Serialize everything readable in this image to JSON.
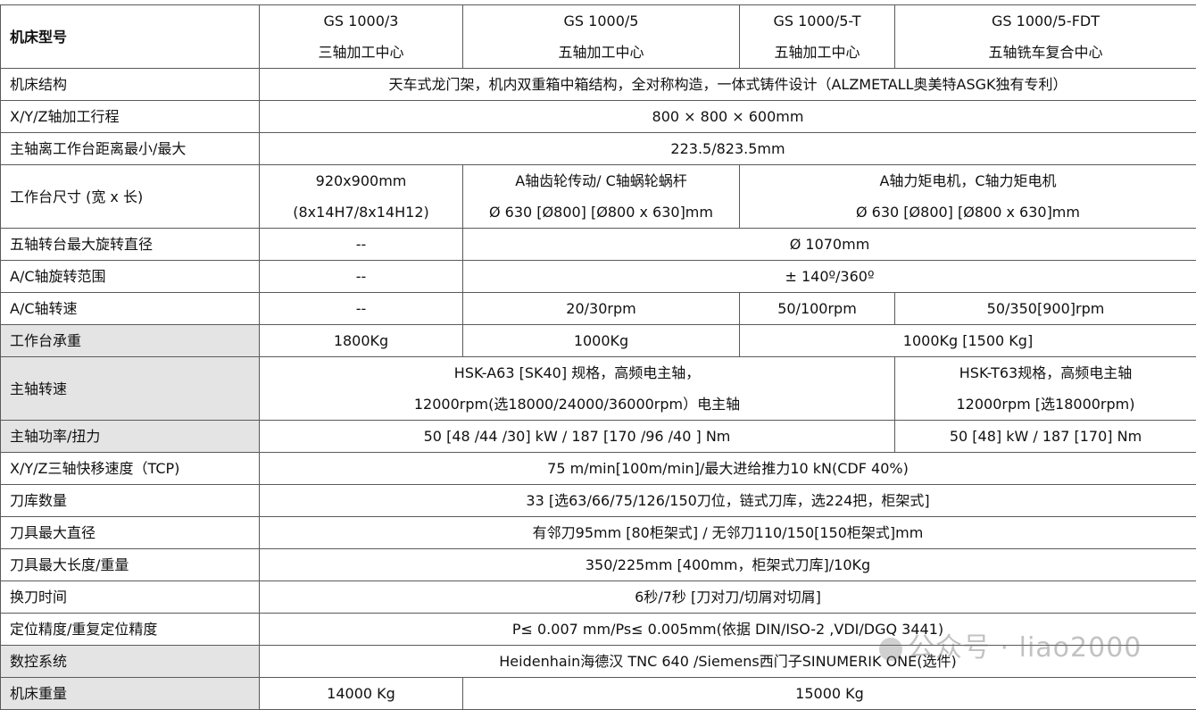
{
  "header": {
    "label": "机床型号",
    "models": [
      "GS 1000/3\n三轴加工中心",
      "GS 1000/5\n五轴加工中心",
      "GS 1000/5-T\n五轴加工中心",
      "GS 1000/5-FDT\n五轴铣车复合中心"
    ]
  },
  "rows": [
    {
      "label": "机床结构",
      "cells": [
        {
          "text": "天车式龙门架，机内双重箱中箱结构，全对称构造，一体式铸件设计（ALZMETALL奥美特ASGK独有专利）",
          "span": 4
        }
      ]
    },
    {
      "label": "X/Y/Z轴加工行程",
      "cells": [
        {
          "text": "800 × 800 × 600mm",
          "span": 4
        }
      ]
    },
    {
      "label": "主轴离工作台距离最小/最大",
      "cells": [
        {
          "text": "223.5/823.5mm",
          "span": 4
        }
      ]
    },
    {
      "label": "工作台尺寸 (宽 x 长)",
      "cells": [
        {
          "text": "920x900mm\n(8x14H7/8x14H12)",
          "span": 1
        },
        {
          "text": "A轴齿轮传动/ C轴蜗轮蜗杆\nØ 630  [Ø800]  [Ø800 x 630]mm",
          "span": 1
        },
        {
          "text": "A轴力矩电机，C轴力矩电机\nØ 630  [Ø800]  [Ø800 x 630]mm",
          "span": 2
        }
      ]
    },
    {
      "label": "五轴转台最大旋转直径",
      "cells": [
        {
          "text": "--",
          "span": 1
        },
        {
          "text": "Ø 1070mm",
          "span": 3
        }
      ]
    },
    {
      "label": "A/C轴旋转范围",
      "cells": [
        {
          "text": "--",
          "span": 1
        },
        {
          "text": "± 140º/360º",
          "span": 3
        }
      ]
    },
    {
      "label": "A/C轴转速",
      "cells": [
        {
          "text": "--",
          "span": 1
        },
        {
          "text": "20/30rpm",
          "span": 1
        },
        {
          "text": "50/100rpm",
          "span": 1
        },
        {
          "text": "50/350[900]rpm",
          "span": 1
        }
      ]
    },
    {
      "label": "工作台承重",
      "gray": true,
      "cells": [
        {
          "text": "1800Kg",
          "span": 1
        },
        {
          "text": "1000Kg",
          "span": 1
        },
        {
          "text": "1000Kg [1500 Kg]",
          "span": 2
        }
      ]
    },
    {
      "label": "主轴转速",
      "gray": true,
      "cells": [
        {
          "text": "HSK-A63 [SK40] 规格，高频电主轴，\n12000rpm(选18000/24000/36000rpm）电主轴",
          "span": 3
        },
        {
          "text": "HSK-T63规格，高频电主轴\n12000rpm  [选18000rpm)",
          "span": 1
        }
      ]
    },
    {
      "label": "主轴功率/扭力",
      "gray": true,
      "cells": [
        {
          "text": "50  [48 /44 /30] kW / 187 [170 /96 /40 ] Nm",
          "span": 3
        },
        {
          "text": "50 [48] kW / 187  [170] Nm",
          "span": 1
        }
      ]
    },
    {
      "label": "X/Y/Z三轴快移速度（TCP)",
      "cells": [
        {
          "text": "75  m/min[100m/min]/最大进给推力10  kN(CDF 40%)",
          "span": 4
        }
      ]
    },
    {
      "label": "刀库数量",
      "cells": [
        {
          "text": "33  [选63/66/75/126/150刀位，链式刀库，选224把，柜架式]",
          "span": 4
        }
      ]
    },
    {
      "label": "刀具最大直径",
      "cells": [
        {
          "text": "有邻刀95mm [80柜架式] / 无邻刀110/150[150柜架式]mm",
          "span": 4
        }
      ]
    },
    {
      "label": "刀具最大长度/重量",
      "cells": [
        {
          "text": "350/225mm [400mm，柜架式刀库]/10Kg",
          "span": 4
        }
      ]
    },
    {
      "label": "换刀时间",
      "cells": [
        {
          "text": "6秒/7秒  [刀对刀/切屑对切屑]",
          "span": 4
        }
      ]
    },
    {
      "label": "定位精度/重复定位精度",
      "cells": [
        {
          "text": "P≤ 0.007  mm/Ps≤ 0.005mm(依据 DIN/ISO-2 ,VDI/DGQ 3441)",
          "span": 4
        }
      ]
    },
    {
      "label": "数控系统",
      "gray": true,
      "cells": [
        {
          "text": "Heidenhain海德汉 TNC 640 /Siemens西门子SINUMERIK ONE(选件)",
          "span": 4
        }
      ]
    },
    {
      "label": "机床重量",
      "gray": true,
      "cells": [
        {
          "text": "14000 Kg",
          "span": 1
        },
        {
          "text": "15000 Kg",
          "span": 3
        }
      ]
    }
  ],
  "watermark": "公众号 · liao2000",
  "colors": {
    "border": "#5a5a5a",
    "label_gray": "#e4e4e4"
  }
}
